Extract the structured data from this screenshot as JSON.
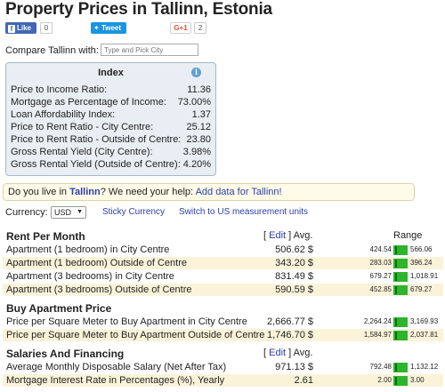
{
  "page": {
    "title": "Property Prices in Tallinn, Estonia"
  },
  "social": {
    "like_label": "Like",
    "like_count": "0",
    "tweet_label": "Tweet",
    "gplus_label": "G+1",
    "gplus_count": "2"
  },
  "compare": {
    "label": "Compare Tallinn with:",
    "placeholder": "Type and Pick City"
  },
  "index": {
    "title": "Index",
    "rows": [
      {
        "label": "Price to Income Ratio:",
        "value": "11.36"
      },
      {
        "label": "Mortgage as Percentage of Income:",
        "value": "73.00%"
      },
      {
        "label": "Loan Affordability Index:",
        "value": "1.37"
      },
      {
        "label": "Price to Rent Ratio - City Centre:",
        "value": "25.12"
      },
      {
        "label": "Price to Rent Ratio - Outside of Centre:",
        "value": "23.80"
      },
      {
        "label": "Gross Rental Yield (City Centre):",
        "value": "3.98%"
      },
      {
        "label": "Gross Rental Yield (Outside of Centre):",
        "value": "4.20%"
      }
    ]
  },
  "help": {
    "prefix": "Do you live in ",
    "city": "Tallinn",
    "middle": "? We need your help: ",
    "link": "Add data for Tallinn!"
  },
  "currency": {
    "label": "Currency:",
    "selected": "USD",
    "sticky_link": "Sticky Currency",
    "us_units_link": "Switch to US measurement units"
  },
  "table_header": {
    "edit_label": "Edit",
    "avg_label": "Avg.",
    "range_label": "Range"
  },
  "sections": [
    {
      "title": "Rent Per Month",
      "rows": [
        {
          "label": "Apartment (1 bedroom) in City Centre",
          "avg": "506.62 $",
          "min": "424.54",
          "max": "566.06"
        },
        {
          "label": "Apartment (1 bedroom) Outside of Centre",
          "avg": "343.20 $",
          "min": "283.03",
          "max": "396.24"
        },
        {
          "label": "Apartment (3 bedrooms) in City Centre",
          "avg": "831.49 $",
          "min": "679.27",
          "max": "1,018.91"
        },
        {
          "label": "Apartment (3 bedrooms) Outside of Centre",
          "avg": "590.59 $",
          "min": "452.85",
          "max": "679.27"
        }
      ]
    },
    {
      "title": "Buy Apartment Price",
      "rows": [
        {
          "label": "Price per Square Meter to Buy Apartment in City Centre",
          "avg": "2,666.77 $",
          "min": "2,264.24",
          "max": "3,169.93"
        },
        {
          "label": "Price per Square Meter to Buy Apartment Outside of Centre",
          "avg": "1,746.70 $",
          "min": "1,584.97",
          "max": "2,037.81"
        }
      ]
    },
    {
      "title": "Salaries And Financing",
      "rows": [
        {
          "label": "Average Monthly Disposable Salary (Net After Tax)",
          "avg": "971.13 $",
          "min": "792.48",
          "max": "1,132.12"
        },
        {
          "label": "Mortgage Interest Rate in Percentages (%), Yearly",
          "avg": "2.61",
          "min": "2.00",
          "max": "3.00"
        }
      ]
    }
  ]
}
